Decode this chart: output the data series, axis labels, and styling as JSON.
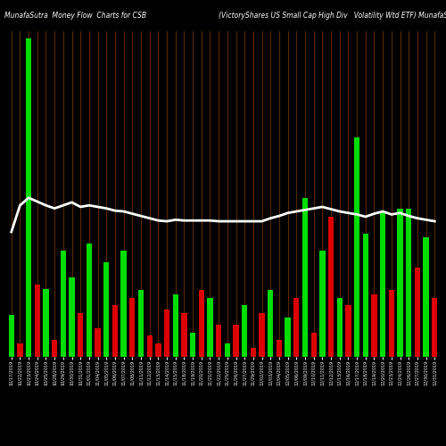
{
  "title_left": "MunafaSutra  Money Flow  Charts for CSB",
  "title_right": "(VictoryShares US Small Cap High Div   Volatility Wtd ETF) MunafaSutr",
  "background_color": "#000000",
  "bar_color_positive": "#00dd00",
  "bar_color_negative": "#dd0000",
  "grid_color": "#5a2800",
  "line_color": "#ffffff",
  "bar_values": [
    55,
    18,
    420,
    95,
    90,
    22,
    140,
    105,
    58,
    150,
    38,
    125,
    68,
    140,
    78,
    88,
    28,
    18,
    62,
    82,
    58,
    32,
    88,
    78,
    42,
    18,
    42,
    68,
    12,
    58,
    88,
    22,
    52,
    78,
    210,
    32,
    140,
    185,
    78,
    68,
    290,
    162,
    82,
    192,
    88,
    195,
    195,
    118,
    158,
    78
  ],
  "bar_colors": [
    "g",
    "r",
    "g",
    "r",
    "g",
    "r",
    "g",
    "g",
    "r",
    "g",
    "r",
    "g",
    "r",
    "g",
    "r",
    "g",
    "r",
    "r",
    "r",
    "g",
    "r",
    "g",
    "r",
    "g",
    "r",
    "g",
    "r",
    "g",
    "r",
    "r",
    "g",
    "r",
    "g",
    "r",
    "g",
    "r",
    "g",
    "r",
    "g",
    "r",
    "g",
    "g",
    "r",
    "g",
    "r",
    "g",
    "g",
    "r",
    "g",
    "r"
  ],
  "line_values": [
    165,
    200,
    210,
    205,
    200,
    196,
    200,
    204,
    198,
    200,
    198,
    196,
    193,
    192,
    189,
    186,
    183,
    180,
    179,
    181,
    180,
    180,
    180,
    180,
    179,
    179,
    179,
    179,
    179,
    179,
    183,
    186,
    190,
    192,
    194,
    196,
    198,
    195,
    192,
    190,
    188,
    185,
    189,
    192,
    188,
    190,
    186,
    183,
    181,
    179
  ],
  "xlabels": [
    "10/17/2019",
    "10/22/2019",
    "10/23/2019",
    "10/24/2019",
    "10/25/2019",
    "10/28/2019",
    "10/29/2019",
    "10/30/2019",
    "10/31/2019",
    "11/01/2019",
    "11/04/2019",
    "11/05/2019",
    "11/06/2019",
    "11/07/2019",
    "11/08/2019",
    "11/11/2019",
    "11/12/2019",
    "11/13/2019",
    "11/14/2019",
    "11/15/2019",
    "11/18/2019",
    "11/19/2019",
    "11/20/2019",
    "11/21/2019",
    "11/22/2019",
    "11/25/2019",
    "11/26/2019",
    "11/27/2019",
    "11/29/2019",
    "12/02/2019",
    "12/03/2019",
    "12/04/2019",
    "12/05/2019",
    "12/06/2019",
    "12/09/2019",
    "12/10/2019",
    "12/11/2019",
    "12/12/2019",
    "12/13/2019",
    "12/16/2019",
    "12/17/2019",
    "12/18/2019",
    "12/19/2019",
    "12/20/2019",
    "12/23/2019",
    "12/24/2019",
    "12/26/2019",
    "12/27/2019",
    "12/30/2019",
    "12/31/2019"
  ],
  "ylim": [
    0,
    430
  ],
  "line_ylim_min": 0,
  "line_ylim_max": 430
}
